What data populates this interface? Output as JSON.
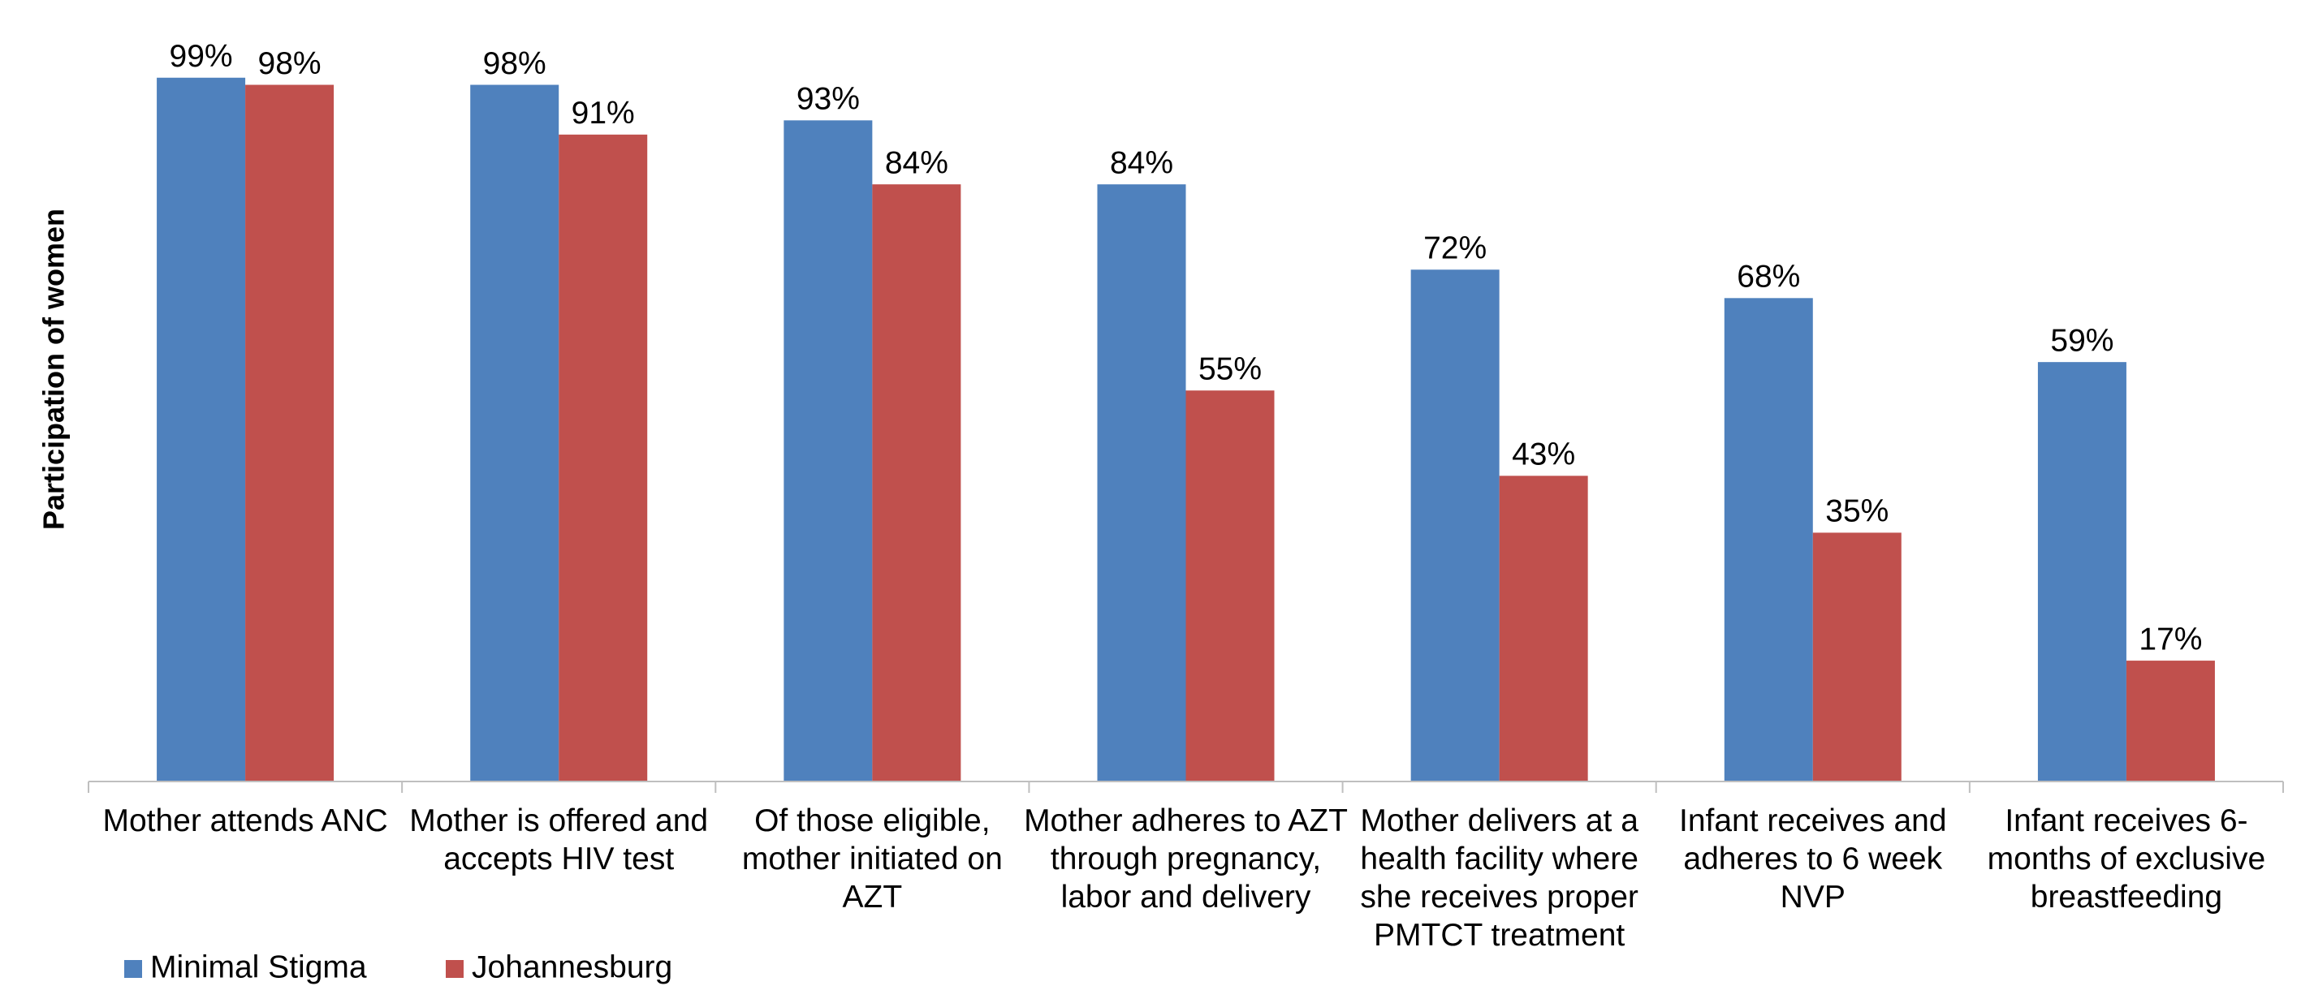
{
  "chart_data": {
    "type": "bar",
    "y_axis_label": "Participation of women",
    "categories": [
      "Mother attends ANC",
      "Mother is offered and accepts HIV test",
      "Of those eligible, mother initiated on AZT",
      "Mother adheres to AZT through pregnancy, labor and delivery",
      "Mother delivers at a health facility where she receives proper PMTCT treatment",
      "Infant receives and adheres to 6 week NVP",
      "Infant receives 6-months of exclusive breastfeeding"
    ],
    "series": [
      {
        "name": "Minimal Stigma",
        "color": "#4f81bd",
        "values": [
          99,
          98,
          93,
          84,
          72,
          68,
          59
        ],
        "value_labels": [
          "99%",
          "98%",
          "93%",
          "84%",
          "72%",
          "68%",
          "59%"
        ]
      },
      {
        "name": "Johannesburg",
        "color": "#c0504d",
        "values": [
          98,
          91,
          84,
          55,
          43,
          35,
          17
        ],
        "value_labels": [
          "98%",
          "91%",
          "84%",
          "55%",
          "43%",
          "35%",
          "17%"
        ]
      }
    ],
    "ylim": [
      0,
      100
    ],
    "legend": "bottom-left"
  }
}
